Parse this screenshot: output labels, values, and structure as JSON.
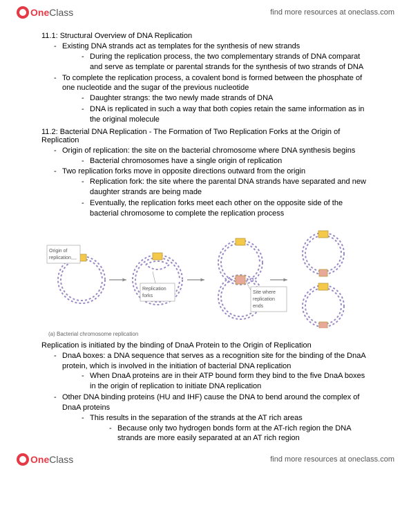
{
  "brand": {
    "one": "One",
    "class": "Class"
  },
  "header_link": "find more resources at oneclass.com",
  "section1": {
    "title": "11.1: Structural Overview of DNA Replication",
    "b1": "Existing DNA strands act as templates for the synthesis of new strands",
    "b1a": "During the replication process, the two complementary strands of DNA comparat and serve as template or parental strands for the synthesis of two strands of DNA",
    "b2": "To complete the replication process, a covalent bond is formed between the phosphate of one nucleotide and the sugar of the previous nucleotide",
    "b2a": "Daughter strangs: the two newly made strands of DNA",
    "b2b": "DNA is replicated in such a way that both copies retain the same information as in the original molecule"
  },
  "section2": {
    "title": "11.2: Bacterial DNA Replication - The Formation of Two Replication Forks at the Origin of Replication",
    "b1": "Origin of replication: the site on the bacterial chromosome where DNA synthesis begins",
    "b1a": "Bacterial chromosomes have a single origin of replication",
    "b2": "Two replication forks move in opposite directions outward from the origin",
    "b2a": "Replication fork: the site where the parental DNA strands have separated and new daughter strands are being made",
    "b2b": "Eventually, the replication forks meet each other on the opposite side of the bacterial chromosome to complete the replication process"
  },
  "diagram": {
    "label_origin": "Origin of replication",
    "label_forks": "Replication forks",
    "label_site": "Site where replication ends",
    "caption": "(a) Bacterial chromosome replication",
    "colors": {
      "strand": "#9b8bc4",
      "origin_box": "#f4c94a",
      "site_box": "#e8a99a",
      "arrow": "#888888",
      "label_line": "#999999",
      "text": "#555555"
    }
  },
  "section3": {
    "title": "Replication is initiated by the binding of DnaA Protein to the Origin of Replication",
    "b1": "DnaA boxes: a DNA sequence that serves as a recognition site for the binding of the DnaA protein, which is involved in the initiation of bacterial DNA replication",
    "b1a": "When DnaA proteins are in their ATP bound form they bind to the five DnaA boxes in the origin of replication to initiate DNA replication",
    "b2": "Other DNA binding proteins (HU and IHF) cause the DNA to bend around the complex of DnaA proteins",
    "b2a": "This results in the separation of the strands at the AT rich areas",
    "b2a1": "Because only two hydrogen bonds form at the AT-rich region the DNA strands are more easily separated at an AT rich region"
  }
}
